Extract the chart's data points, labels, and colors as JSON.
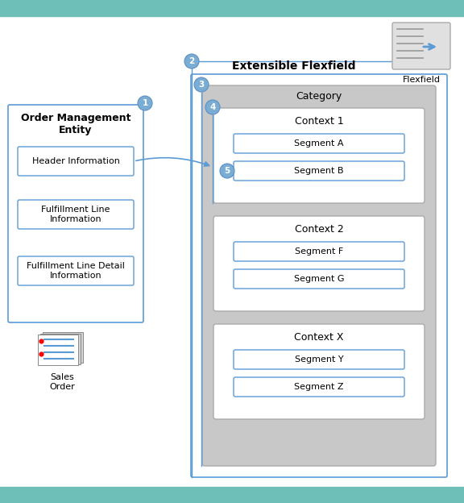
{
  "bg_color": "#ffffff",
  "title": "Extensible Flexfield",
  "entity_title": "Order Management\nEntity",
  "entity_boxes": [
    "Header Information",
    "Fulfillment Line\nInformation",
    "Fulfillment Line Detail\nInformation"
  ],
  "sales_order_label": "Sales\nOrder",
  "category_label": "Category",
  "contexts": [
    {
      "label": "Context 1",
      "segments": [
        "Segment A",
        "Segment B"
      ]
    },
    {
      "label": "Context 2",
      "segments": [
        "Segment F",
        "Segment G"
      ]
    },
    {
      "label": "Context X",
      "segments": [
        "Segment Y",
        "Segment Z"
      ]
    }
  ],
  "circle_color": "#7aadd4",
  "circle_edge_color": "#5b8fc4",
  "circle_text_color": "#ffffff",
  "entity_outer_edge": "#5b9bd5",
  "entity_box_edge": "#5b9bd5",
  "category_fill": "#c8c8c8",
  "category_edge": "#aaaaaa",
  "outer_box_fill": "#ffffff",
  "outer_box_edge": "#5b9bd5",
  "context_box_fill": "#ffffff",
  "context_box_edge": "#aaaaaa",
  "segment_fill": "#ffffff",
  "segment_edge": "#5b9bd5",
  "arrow_color": "#5b9bd5",
  "vline_color": "#5b9bd5",
  "teal_bar": "#6dbfb8",
  "font_size_title": 10,
  "font_size_entity_title": 9,
  "font_size_box": 8,
  "font_size_category": 9,
  "font_size_context": 9,
  "font_size_segment": 8,
  "font_size_flexfield": 8,
  "font_size_sales": 8
}
